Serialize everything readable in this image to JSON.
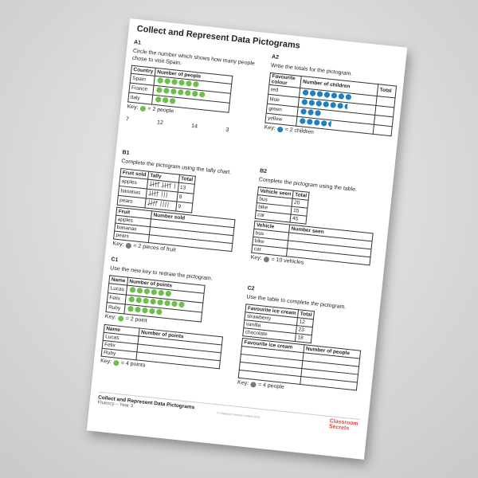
{
  "header": {
    "title": "Collect and Represent Data  Pictograms"
  },
  "a1": {
    "label": "A1",
    "question": "Circle the number which shows how many people chose to visit Spain.",
    "icon_color": "#6cbf4a",
    "headers": [
      "Country",
      "Number of people"
    ],
    "rows": [
      {
        "label": "Spain",
        "icons": 6
      },
      {
        "label": "France",
        "icons": 7
      },
      {
        "label": "Italy",
        "icons": 3
      }
    ],
    "key_prefix": "Key:",
    "key_text": "= 2 people",
    "options": [
      "7",
      "12",
      "14",
      "3"
    ]
  },
  "a2": {
    "label": "A2",
    "question": "Write the totals for the pictogram.",
    "icon_color": "#1f7fc0",
    "headers": [
      "Favourite colour",
      "Number of children",
      "Total"
    ],
    "rows": [
      {
        "label": "red",
        "icons": 7
      },
      {
        "label": "blue",
        "icons": 6.5
      },
      {
        "label": "green",
        "icons": 3
      },
      {
        "label": "yellow",
        "icons": 4.5
      }
    ],
    "key_prefix": "Key:",
    "key_text": "= 2 children"
  },
  "b1": {
    "label": "B1",
    "question": "Complete the pictogram using the tally chart.",
    "icon_color": "#777777",
    "headers": [
      "Fruit sold",
      "Tally",
      "Total"
    ],
    "rows": [
      [
        "apples",
        "13"
      ],
      [
        "bananas",
        "8"
      ],
      [
        "pears",
        "9"
      ]
    ],
    "headers2": [
      "Fruit",
      "Number sold"
    ],
    "rows2": [
      "apples",
      "bananas",
      "pears"
    ],
    "key_prefix": "Key:",
    "key_text": "= 2 pieces of fruit"
  },
  "b2": {
    "label": "B2",
    "question": "Complete the pictogram using the table.",
    "icon_color": "#777777",
    "headers": [
      "Vehicle seen",
      "Total"
    ],
    "rows": [
      [
        "bus",
        "20"
      ],
      [
        "bike",
        "15"
      ],
      [
        "car",
        "45"
      ]
    ],
    "headers2": [
      "Vehicle",
      "Number seen"
    ],
    "rows2": [
      "bus",
      "bike",
      "car"
    ],
    "key_prefix": "Key:",
    "key_text": "= 10 vehicles"
  },
  "c1": {
    "label": "C1",
    "question": "Use the new key to redraw the pictogram.",
    "icon_color": "#6cbf4a",
    "headers": [
      "Name",
      "Number of points"
    ],
    "rows": [
      {
        "label": "Lucas",
        "icons": 6
      },
      {
        "label": "Felix",
        "icons": 8
      },
      {
        "label": "Ruby",
        "icons": 5
      }
    ],
    "key_prefix": "Key:",
    "key_text": "= 2 point",
    "headers2": [
      "Name",
      "Number of points"
    ],
    "rows2": [
      "Lucas",
      "Felix",
      "Ruby"
    ],
    "key2_text": "= 4 points"
  },
  "c2": {
    "label": "C2",
    "question": "Use the table to complete the pictogram.",
    "icon_color": "#777777",
    "headers": [
      "Favourite ice cream",
      "Total"
    ],
    "rows": [
      [
        "strawberry",
        "12"
      ],
      [
        "vanilla",
        "23"
      ],
      [
        "chocolate",
        "18"
      ]
    ],
    "headers2": [
      "Favourite ice cream",
      "Number of people"
    ],
    "key_prefix": "Key:",
    "key_text": "= 4 people"
  },
  "footer": {
    "title": "Collect and Represent Data  Pictograms",
    "subtitle": "Fluency – Year 3",
    "copyright": "© Classroom Secrets Limited 2018",
    "logo": "Classroom Secrets"
  }
}
